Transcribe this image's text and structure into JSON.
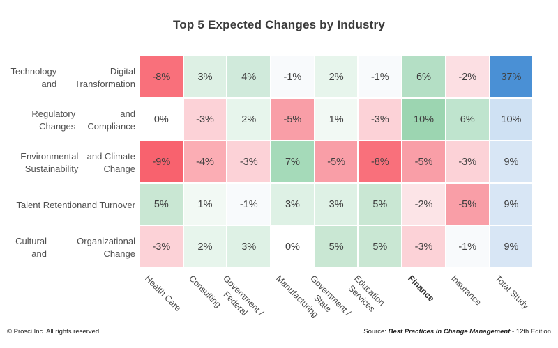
{
  "page": {
    "footer_left": "© Prosci Inc. All rights reserved",
    "footer_source_prefix": "Source: ",
    "footer_source_title": "Best Practices in Change Management",
    "footer_source_suffix": " - 12th Edition"
  },
  "chart_data": {
    "type": "heatmap",
    "title": "Top 5 Expected Changes by Industry",
    "value_format": "percent",
    "value_suffix": "%",
    "legend": "none",
    "rows": [
      {
        "lines": [
          "Technology and",
          "Digital Transformation"
        ]
      },
      {
        "lines": [
          "Regulatory Changes",
          "and Compliance"
        ]
      },
      {
        "lines": [
          "Environmental Sustainability",
          "and Climate Change"
        ]
      },
      {
        "lines": [
          "Talent Retention",
          "and Turnover"
        ]
      },
      {
        "lines": [
          "Cultural and",
          "Organizational Change"
        ]
      }
    ],
    "columns": [
      {
        "lines": [
          "Health Care"
        ],
        "bold": false
      },
      {
        "lines": [
          "Consulting"
        ],
        "bold": false
      },
      {
        "lines": [
          "Government /",
          "Federal"
        ],
        "bold": false
      },
      {
        "lines": [
          "Manufacturing"
        ],
        "bold": false
      },
      {
        "lines": [
          "Government /",
          "State"
        ],
        "bold": false
      },
      {
        "lines": [
          "Education",
          "Services"
        ],
        "bold": false
      },
      {
        "lines": [
          "Finance"
        ],
        "bold": true
      },
      {
        "lines": [
          "Insurance"
        ],
        "bold": false
      },
      {
        "lines": [
          "Total Study"
        ],
        "bold": false
      }
    ],
    "values": [
      [
        -8,
        3,
        4,
        -1,
        2,
        -1,
        6,
        -2,
        37
      ],
      [
        0,
        -3,
        2,
        -5,
        1,
        -3,
        10,
        6,
        10
      ],
      [
        -9,
        -4,
        -3,
        7,
        -5,
        -8,
        -5,
        -3,
        9
      ],
      [
        5,
        1,
        -1,
        3,
        3,
        5,
        -2,
        -5,
        9
      ],
      [
        -3,
        2,
        3,
        0,
        5,
        5,
        -3,
        -1,
        9
      ]
    ],
    "cell_colors": [
      [
        "#f9707b",
        "#ddf0e4",
        "#d0eadb",
        "#f8fafc",
        "#e7f5ec",
        "#f8fafc",
        "#b4dfc5",
        "#fcdfe3",
        "#4a90d5"
      ],
      [
        "#ffffff",
        "#fcd2d7",
        "#e7f5ec",
        "#f99ea7",
        "#f2f9f4",
        "#fcd2d7",
        "#9cd5b1",
        "#bfe4ce",
        "#cfe1f3"
      ],
      [
        "#f8626e",
        "#fbadb4",
        "#fcd2d7",
        "#a5dab9",
        "#f99ea7",
        "#f9707b",
        "#f99ea7",
        "#fcd2d7",
        "#d8e6f5"
      ],
      [
        "#c9e7d3",
        "#f2f9f4",
        "#f8fafc",
        "#def1e5",
        "#def1e5",
        "#c9e7d3",
        "#fce4e7",
        "#f99ea7",
        "#d8e6f5"
      ],
      [
        "#fcd2d7",
        "#e7f5ec",
        "#def1e5",
        "#ffffff",
        "#c9e7d3",
        "#c9e7d3",
        "#fcd2d7",
        "#f8fafc",
        "#d8e6f5"
      ]
    ]
  }
}
